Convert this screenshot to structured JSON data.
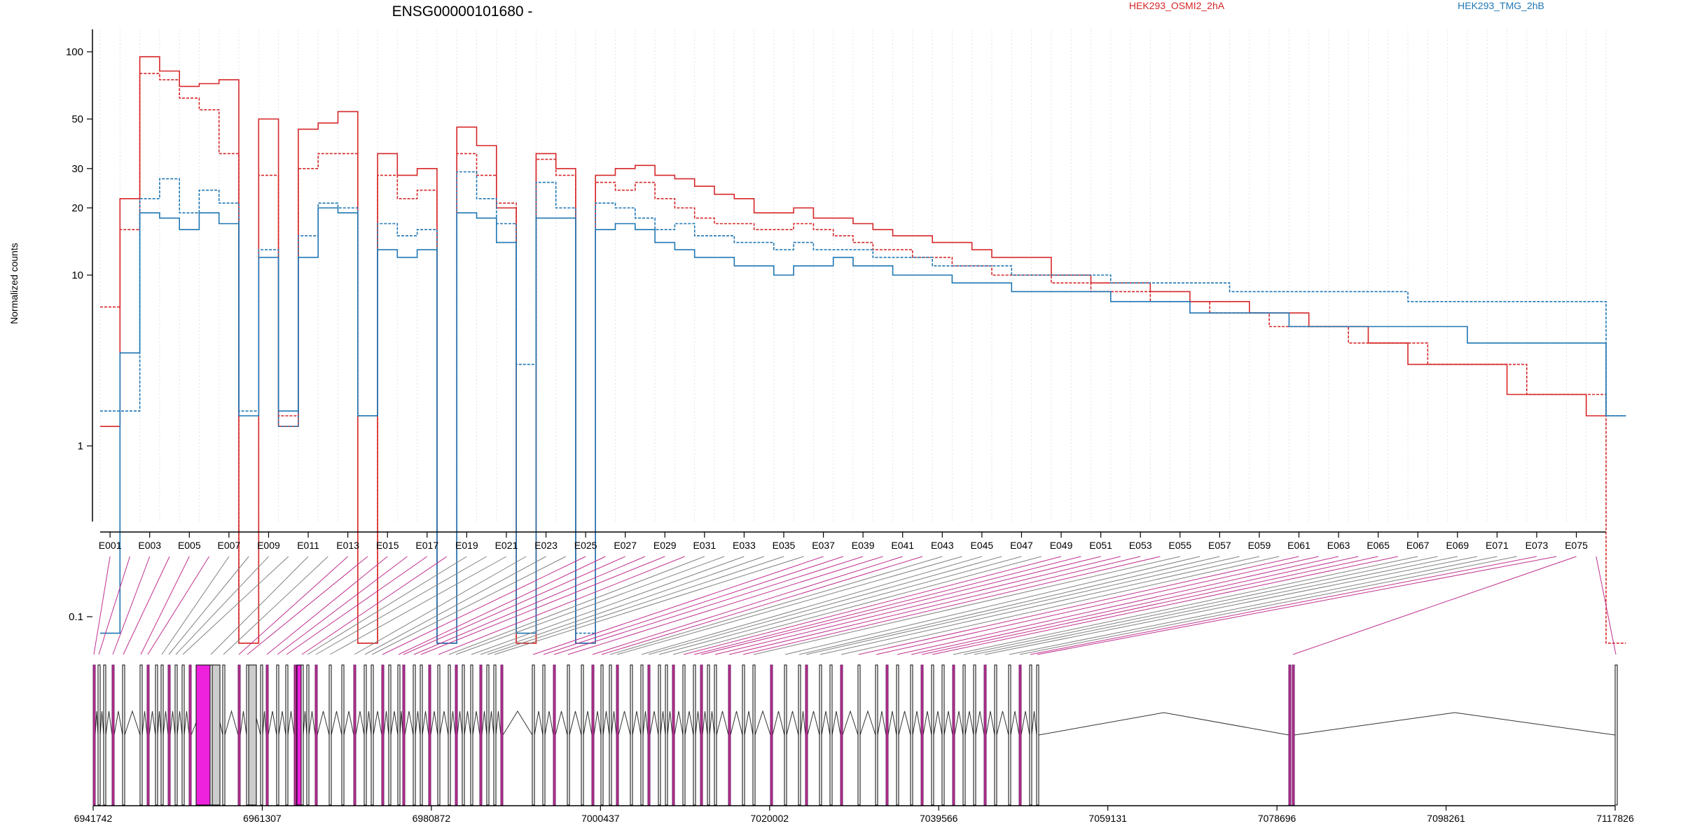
{
  "chart_data": {
    "type": "line",
    "title": "ENSG00000101680 -",
    "ylabel": "Normalized counts",
    "yscale": "log",
    "yticks": [
      0.1,
      1,
      10,
      20,
      30,
      50,
      100
    ],
    "legend_placement": "top-right",
    "grid": false,
    "exon_labels": [
      "E001",
      "E003",
      "E005",
      "E007",
      "E009",
      "E011",
      "E013",
      "E015",
      "E017",
      "E019",
      "E021",
      "E023",
      "E025",
      "E027",
      "E029",
      "E031",
      "E033",
      "E035",
      "E037",
      "E039",
      "E041",
      "E043",
      "E045",
      "E047",
      "E049",
      "E051",
      "E053",
      "E055",
      "E057",
      "E059",
      "E061",
      "E063",
      "E065",
      "E067",
      "E069",
      "E071",
      "E073",
      "E075"
    ],
    "series": [
      {
        "name": "HEK293_OSMI2_2hA",
        "color": "#d62728",
        "values": [
          1.3,
          22,
          95,
          82,
          70,
          72,
          75,
          0.07,
          50,
          1.3,
          45,
          48,
          54,
          0.07,
          35,
          28,
          30,
          0.07,
          46,
          38,
          20,
          0.07,
          35,
          30,
          0.07,
          28,
          30,
          31,
          28,
          27,
          25,
          23,
          22,
          19,
          19,
          20,
          18,
          18,
          17,
          16,
          15,
          15,
          14,
          14,
          13,
          12,
          12,
          12,
          10,
          10,
          9,
          9,
          9,
          8,
          8,
          7,
          7,
          7,
          6,
          6,
          6,
          5,
          5,
          5,
          4,
          4,
          3,
          3,
          3,
          3,
          3,
          2,
          2,
          2,
          2,
          1.5
        ]
      },
      {
        "name": "HEK293_OSMI2_2hA",
        "color": "#d62728",
        "values": [
          6.5,
          16,
          80,
          75,
          62,
          55,
          35,
          0.07,
          28,
          1.5,
          30,
          35,
          35,
          0.07,
          28,
          22,
          24,
          0.07,
          35,
          28,
          21,
          0.07,
          33,
          28,
          0.07,
          26,
          24,
          26,
          22,
          20,
          18,
          17,
          17,
          16,
          16,
          17,
          16,
          15,
          14,
          13,
          13,
          12,
          12,
          11,
          11,
          10,
          10,
          10,
          9,
          9,
          8,
          8,
          8,
          7,
          7,
          7,
          6,
          6,
          6,
          5,
          5,
          5,
          5,
          4,
          4,
          4,
          4,
          3,
          3,
          3,
          3,
          3,
          2,
          2,
          2,
          2,
          0.07
        ]
      },
      {
        "name": "HEK293_TMG_2hB",
        "color": "#1f77b4",
        "values": [
          0.08,
          3.5,
          19,
          18,
          16,
          19,
          17,
          1.5,
          12,
          1.6,
          12,
          20,
          19,
          1.5,
          13,
          12,
          13,
          0.07,
          19,
          18,
          14,
          0.08,
          18,
          18,
          0.07,
          16,
          17,
          16,
          14,
          13,
          12,
          12,
          11,
          11,
          10,
          11,
          11,
          12,
          11,
          11,
          10,
          10,
          10,
          9,
          9,
          9,
          8,
          8,
          8,
          8,
          8,
          7,
          7,
          7,
          7,
          6,
          6,
          6,
          6,
          6,
          5,
          5,
          5,
          5,
          5,
          5,
          5,
          5,
          5,
          4,
          4,
          4,
          4,
          4,
          4,
          4,
          1.5
        ]
      },
      {
        "name": "HEK293_TMG_2hB",
        "color": "#1f77b4",
        "values": [
          1.6,
          1.6,
          22,
          27,
          19,
          24,
          21,
          1.6,
          13,
          1.3,
          15,
          21,
          20,
          1.5,
          17,
          15,
          16,
          0.07,
          29,
          22,
          17,
          3,
          26,
          20,
          0.08,
          21,
          20,
          18,
          16,
          17,
          15,
          15,
          14,
          14,
          13,
          14,
          13,
          13,
          13,
          12,
          12,
          12,
          11,
          11,
          11,
          11,
          10,
          10,
          10,
          10,
          10,
          9,
          9,
          9,
          9,
          9,
          9,
          8,
          8,
          8,
          8,
          8,
          8,
          8,
          8,
          8,
          7,
          7,
          7,
          7,
          7,
          7,
          7,
          7,
          7,
          7,
          1.5
        ]
      }
    ],
    "genome_axis": {
      "tick_labels": [
        "6941742",
        "6961307",
        "6980872",
        "7000437",
        "7020002",
        "7039566",
        "7059131",
        "7078696",
        "7098261",
        "7117826"
      ],
      "range": [
        6941742,
        7117826
      ]
    }
  }
}
